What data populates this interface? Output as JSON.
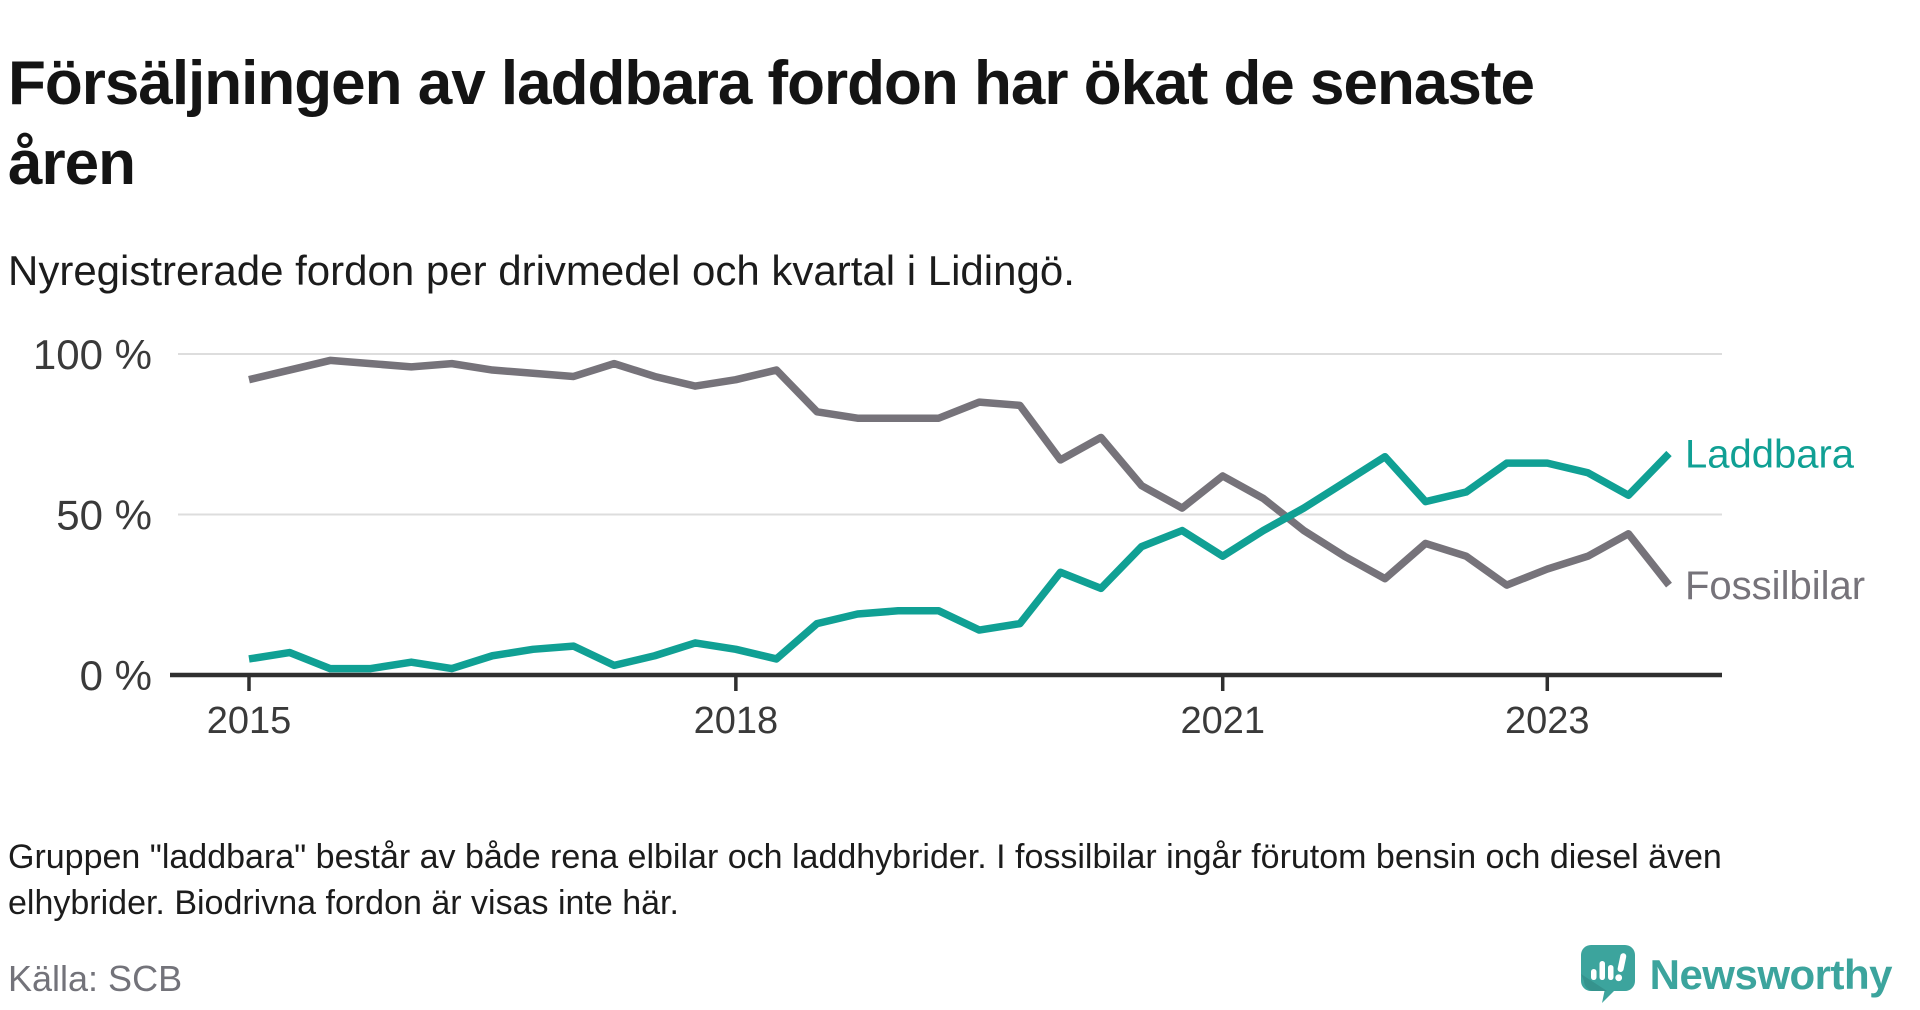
{
  "header": {
    "title_lines": [
      "Försäljningen av laddbara fordon har ökat de senaste",
      "åren"
    ],
    "subtitle": "Nyregistrerade fordon per drivmedel och kvartal i Lidingö."
  },
  "chart_data": {
    "type": "line",
    "title": "Försäljningen av laddbara fordon har ökat de senaste åren",
    "subtitle": "Nyregistrerade fordon per drivmedel och kvartal i Lidingö.",
    "unit": "%",
    "frequency": "quarterly",
    "grid": "horizontal",
    "legend_position": "line-end-labels",
    "ylim": [
      0,
      100
    ],
    "categories": [
      "2015K1",
      "2015K2",
      "2015K3",
      "2015K4",
      "2016K1",
      "2016K2",
      "2016K3",
      "2016K4",
      "2017K1",
      "2017K2",
      "2017K3",
      "2017K4",
      "2018K1",
      "2018K2",
      "2018K3",
      "2018K4",
      "2019K1",
      "2019K2",
      "2019K3",
      "2019K4",
      "2020K1",
      "2020K2",
      "2020K3",
      "2020K4",
      "2021K1",
      "2021K2",
      "2021K3",
      "2021K4",
      "2022K1",
      "2022K2",
      "2022K3",
      "2022K4",
      "2023K1",
      "2023K2",
      "2023K3",
      "2023K4"
    ],
    "series": [
      {
        "name": "Fossilbilar",
        "color": "#76737a",
        "values": [
          92,
          95,
          98,
          97,
          96,
          97,
          95,
          94,
          93,
          97,
          93,
          90,
          92,
          95,
          82,
          80,
          80,
          80,
          85,
          84,
          67,
          74,
          59,
          52,
          62,
          55,
          45,
          37,
          30,
          41,
          37,
          28,
          33,
          37,
          44,
          28
        ]
      },
      {
        "name": "Laddbara",
        "color": "#10a094",
        "values": [
          5,
          7,
          2,
          2,
          4,
          2,
          6,
          8,
          9,
          3,
          6,
          10,
          8,
          5,
          16,
          19,
          20,
          20,
          14,
          16,
          32,
          27,
          40,
          45,
          37,
          45,
          52,
          60,
          68,
          54,
          57,
          66,
          66,
          63,
          56,
          69
        ]
      }
    ],
    "yticks": [
      {
        "label": "100 %",
        "value": 100
      },
      {
        "label": "50 %",
        "value": 50
      },
      {
        "label": "0 %",
        "value": 0
      }
    ],
    "xticks": [
      {
        "label": "2015",
        "index": 0
      },
      {
        "label": "2018",
        "index": 12
      },
      {
        "label": "2021",
        "index": 24
      },
      {
        "label": "2023",
        "index": 32
      }
    ]
  },
  "footer": {
    "note_lines": [
      "Gruppen \"laddbara\" består av både rena elbilar och laddhybrider. I fossilbilar ingår förutom bensin och diesel även",
      "elhybrider. Biodrivna fordon är visas inte här."
    ],
    "source": "Källa: SCB"
  },
  "brand": {
    "name": "Newsworthy",
    "color": "#3ca49d",
    "logo_icon": "speech-bubble-bar-chart-exclamation-icon"
  }
}
